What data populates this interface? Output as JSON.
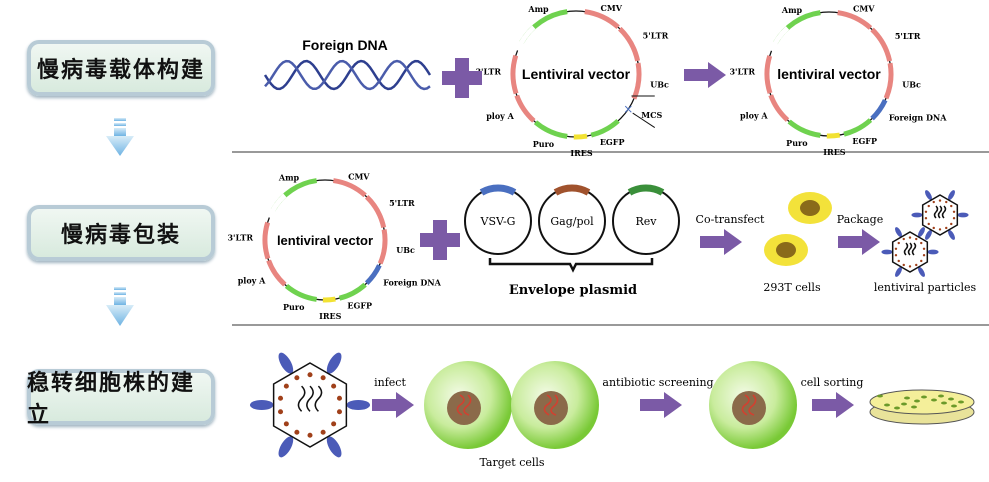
{
  "steps": [
    {
      "label": "慢病毒载体构建"
    },
    {
      "label": "慢病毒包装"
    },
    {
      "label": "稳转细胞株的建立"
    }
  ],
  "row1": {
    "foreign_dna": "Foreign DNA",
    "vector_title": "Lentiviral vector",
    "vector_labels": {
      "amp": "Amp",
      "cmv": "CMV",
      "ltr5": "5'LTR",
      "ubc": "UBc",
      "mcs": "MCS",
      "egfp": "EGFP",
      "ires": "IRES",
      "puro": "Puro",
      "polya": "ploy A",
      "ltr3": "3'LTR"
    },
    "result_title": "lentiviral vector",
    "result_foreign": "Foreign DNA"
  },
  "row2": {
    "vector_title": "lentiviral vector",
    "plasmids": [
      "VSV-G",
      "Gag/pol",
      "Rev"
    ],
    "envelope": "Envelope plasmid",
    "cotransfect": "Co-transfect",
    "cells": "293T cells",
    "package": "Package",
    "particles": "lentiviral particles"
  },
  "row3": {
    "infect": "infect",
    "screening": "antibiotic screening",
    "sorting": "cell sorting",
    "target": "Target cells"
  },
  "colors": {
    "arrow": "#7b5aa6",
    "red": "#e88580",
    "green": "#6fd24f",
    "blue": "#4a6fc0",
    "yellow": "#f2e233",
    "cell": "#f3e23a",
    "target": "#8fd443"
  }
}
